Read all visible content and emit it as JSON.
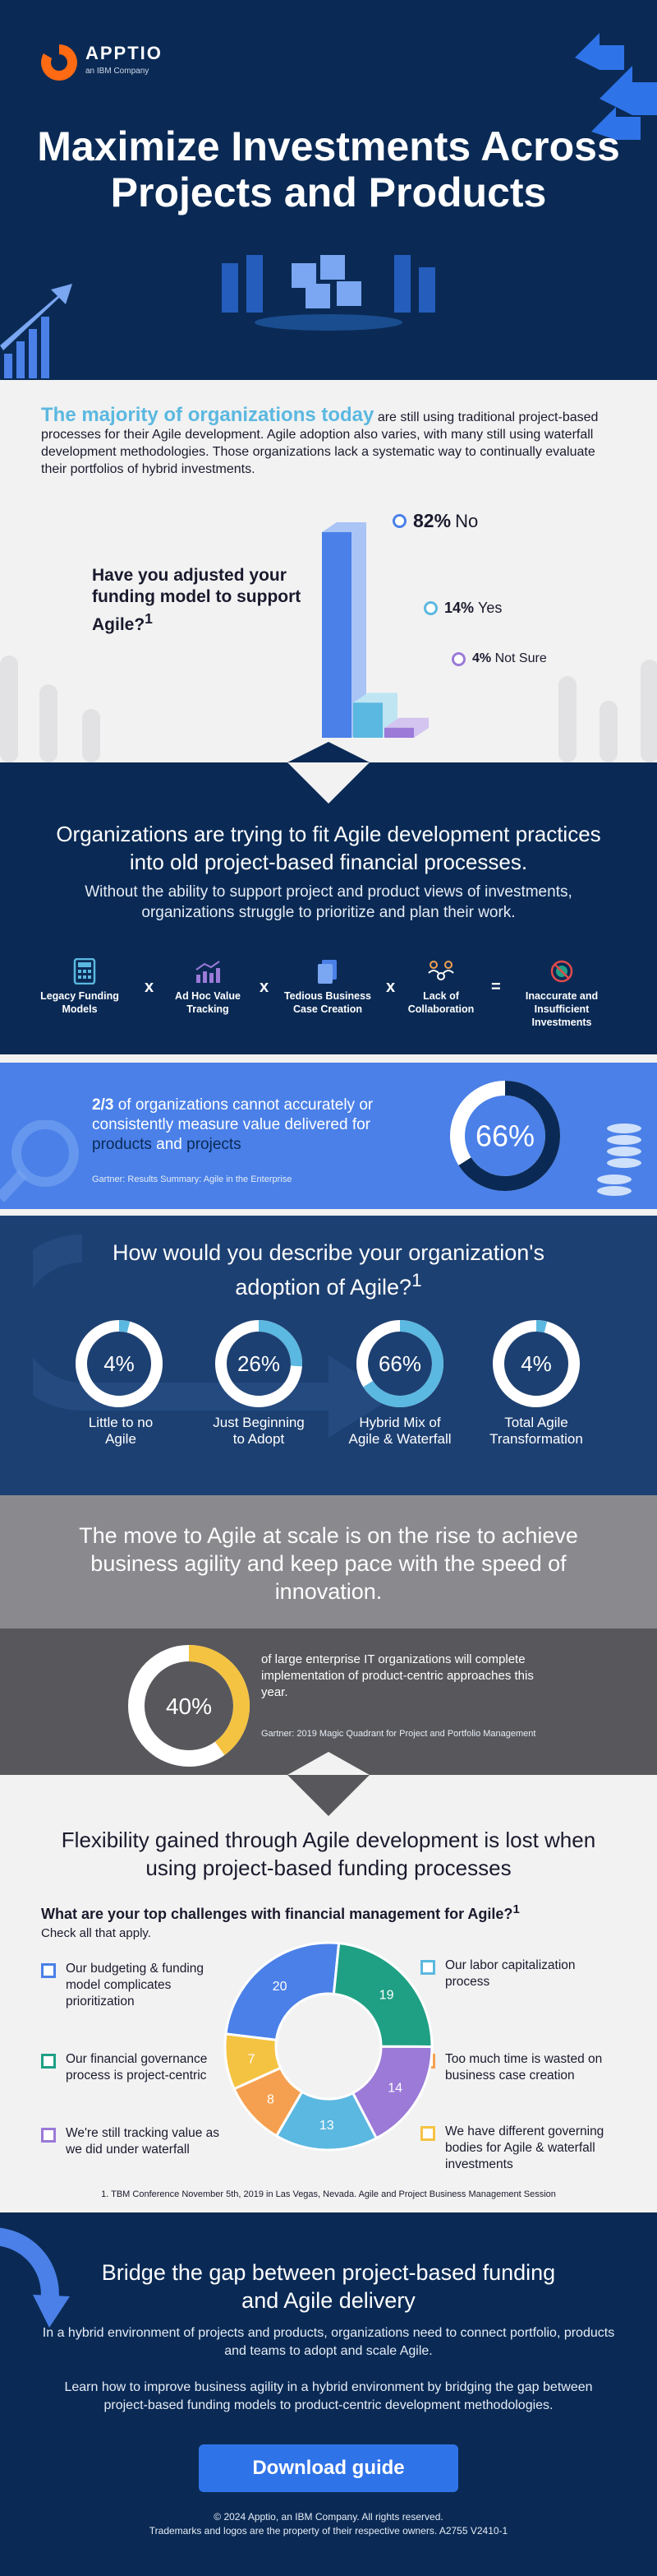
{
  "brand": {
    "name": "APPTIO",
    "sub": "an IBM Company"
  },
  "hero": {
    "title_line1": "Maximize Investments Across",
    "title_line2": "Projects and Products"
  },
  "intro": {
    "lead": "The majority of organizations today",
    "text": " are still using traditional project-based processes for their Agile development. Agile adoption also varies, with many still using waterfall development methodologies. Those organizations lack a systematic way to continually evaluate their portfolios of hybrid investments."
  },
  "funding": {
    "question": "Have you adjusted your funding model to support Agile?",
    "footnote_mark": "1",
    "items": [
      {
        "pct": "82%",
        "label": "No"
      },
      {
        "pct": "14%",
        "label": "Yes"
      },
      {
        "pct": "4%",
        "label": "Not Sure"
      }
    ]
  },
  "fit": {
    "title": "Organizations are trying to fit Agile development practices into old project-based financial processes.",
    "subtitle": "Without the ability to support project and product views of investments, organizations struggle to prioritize and plan their work.",
    "items": [
      "Legacy Funding Models",
      "Ad Hoc Value Tracking",
      "Tedious Business Case Creation",
      "Lack of Collaboration",
      "Inaccurate and Insufficient Investments"
    ],
    "ops": [
      "x",
      "x",
      "x",
      "="
    ]
  },
  "stat": {
    "fraction": "2/3",
    "text1": " of organizations cannot accurately or consistently measure value delivered for ",
    "products": "products",
    "and": " and ",
    "projects": "projects",
    "source": "Gartner: Results Summary: Agile in the Enterprise",
    "pct_label": "66%"
  },
  "adoption": {
    "title": "How would you describe your organization's adoption of Agile?",
    "footnote_mark": "1",
    "items": [
      {
        "value_label": "4%",
        "label_line1": "Little to no",
        "label_line2": "Agile"
      },
      {
        "value_label": "26%",
        "label_line1": "Just Beginning",
        "label_line2": "to Adopt"
      },
      {
        "value_label": "66%",
        "label_line1": "Hybrid Mix of",
        "label_line2": "Agile & Waterfall"
      },
      {
        "value_label": "4%",
        "label_line1": "Total Agile",
        "label_line2": "Transformation"
      }
    ]
  },
  "move": {
    "title": "The move to Agile at scale is on the rise to achieve business agility and keep pace with the speed of innovation.",
    "pct_label": "40%",
    "text": "of large enterprise IT organizations will complete implementation of product-centric approaches this year.",
    "source": "Gartner: 2019 Magic Quadrant for Project and Portfolio Management"
  },
  "flex": {
    "title": "Flexibility gained through Agile development is lost when using project-based funding processes",
    "question": "What are your top challenges with financial management for Agile?",
    "footnote_mark": "1",
    "instruction": "Check all that apply.",
    "challenges": [
      "Our budgeting & funding model complicates prioritization",
      "Our financial governance process is project-centric",
      "We're still tracking value as we did under waterfall",
      "Our labor capitalization process",
      "Too much time is wasted on business case creation",
      "We have different governing bodies for Agile & waterfall investments"
    ],
    "footnote": "1. TBM Conference November 5th, 2019 in Las Vegas, Nevada. Agile and Project Business Management Session"
  },
  "bridge": {
    "title": "Bridge the gap between project-based funding and Agile delivery",
    "p1": "In a hybrid environment of projects and products, organizations need to connect portfolio, products and teams to adopt and scale Agile.",
    "p2": "Learn how to improve business agility in a hybrid environment by bridging the gap between project-based funding models to product-centric development methodologies.",
    "button": "Download guide",
    "copyright": "© 2024 Apptio, an IBM Company. All rights reserved.",
    "trademark": "Trademarks and logos are the property of their respective owners. A2755 V2410-1"
  },
  "colors": {
    "navy": "#0a2a55",
    "blue": "#4a80e8",
    "cyan": "#5bb8e0",
    "purple": "#9b7ad8",
    "yellow": "#f5c342",
    "orange": "#f5a050",
    "teal": "#1fa085"
  },
  "chart_data": [
    {
      "type": "bar",
      "categories": [
        "No",
        "Yes",
        "Not Sure"
      ],
      "values": [
        82,
        14,
        4
      ],
      "title": "Have you adjusted your funding model to support Agile?"
    },
    {
      "type": "pie",
      "categories": [
        ""
      ],
      "values": [
        66
      ],
      "title": ""
    },
    {
      "type": "pie",
      "title": "How would you describe your organization's adoption of Agile?",
      "categories": [
        "Little to no Agile",
        "Just Beginning to Adopt",
        "Hybrid Mix of Agile & Waterfall",
        "Total Agile Transformation"
      ],
      "values": [
        4,
        26,
        66,
        4
      ]
    },
    {
      "type": "pie",
      "categories": [
        ""
      ],
      "values": [
        40
      ],
      "title": ""
    },
    {
      "type": "pie",
      "title": "What are your top challenges with financial management for Agile?",
      "categories": [
        "Our budgeting & funding model complicates prioritization",
        "Our financial governance process is project-centric",
        "We're still tracking value as we did under waterfall",
        "Too much time is wasted on business case creation",
        "Our labor capitalization process",
        "We have different governing bodies for Agile & waterfall investments"
      ],
      "values": [
        20,
        19,
        14,
        13,
        8,
        7
      ],
      "slice_colors": [
        "#4a80e8",
        "#1fa085",
        "#9b7ad8",
        "#5bb8e0",
        "#f5a050",
        "#f5c342"
      ]
    }
  ]
}
